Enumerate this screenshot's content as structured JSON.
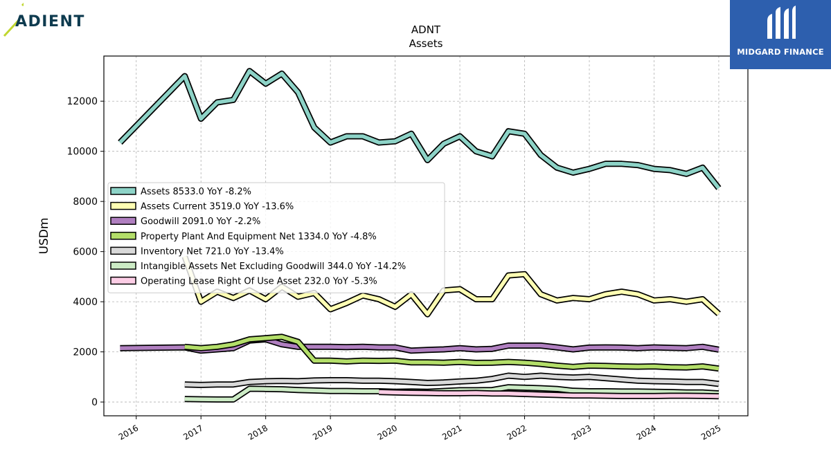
{
  "branding": {
    "left_logo_text": "ADIENT",
    "right_logo_text": "MIDGARD FINANCE",
    "left_logo_icon": "adient-slash-logo-icon",
    "right_logo_icon": "midgard-m-logo-icon"
  },
  "chart_data": {
    "type": "line",
    "title": "ADNT",
    "subtitle": "Assets",
    "ylabel": "USDm",
    "xlabel": "",
    "xlim": [
      2015.5,
      2025.45
    ],
    "ylim": [
      -550,
      13800
    ],
    "yticks": [
      0,
      2000,
      4000,
      6000,
      8000,
      10000,
      12000
    ],
    "xticks": [
      2016,
      2017,
      2018,
      2019,
      2020,
      2021,
      2022,
      2023,
      2024,
      2025
    ],
    "grid": true,
    "legend_position": "center-left",
    "series": [
      {
        "name": "Assets  8533.0 YoY -8.2%",
        "color": "#8dd3c7",
        "x": [
          2015.75,
          2016.75,
          2017.0,
          2017.25,
          2017.5,
          2017.75,
          2018.0,
          2018.25,
          2018.5,
          2018.75,
          2019.0,
          2019.25,
          2019.5,
          2019.75,
          2020.0,
          2020.25,
          2020.5,
          2020.75,
          2021.0,
          2021.25,
          2021.5,
          2021.75,
          2022.0,
          2022.25,
          2022.5,
          2022.75,
          2023.0,
          2023.25,
          2023.5,
          2023.75,
          2024.0,
          2024.25,
          2024.5,
          2024.75,
          2025.0
        ],
        "y": [
          10350,
          13000,
          11300,
          11950,
          12050,
          13200,
          12700,
          13100,
          12350,
          10950,
          10350,
          10600,
          10600,
          10350,
          10400,
          10700,
          9650,
          10300,
          10600,
          10000,
          9800,
          10800,
          10700,
          9850,
          9350,
          9150,
          9300,
          9500,
          9500,
          9450,
          9300,
          9250,
          9100,
          9350,
          8533
        ]
      },
      {
        "name": "Assets Current  3519.0 YoY -13.6%",
        "color": "#ffffb3",
        "x": [
          2016.75,
          2017.0,
          2017.25,
          2017.5,
          2017.75,
          2018.0,
          2018.25,
          2018.5,
          2018.75,
          2019.0,
          2019.25,
          2019.5,
          2019.75,
          2020.0,
          2020.25,
          2020.5,
          2020.75,
          2021.0,
          2021.25,
          2021.5,
          2021.75,
          2022.0,
          2022.25,
          2022.5,
          2022.75,
          2023.0,
          2023.25,
          2023.5,
          2023.75,
          2024.0,
          2024.25,
          2024.5,
          2024.75,
          2025.0
        ],
        "y": [
          5800,
          4000,
          4400,
          4150,
          4450,
          4100,
          4600,
          4200,
          4350,
          3700,
          3950,
          4250,
          4100,
          3800,
          4300,
          3500,
          4450,
          4500,
          4100,
          4100,
          5050,
          5100,
          4300,
          4050,
          4150,
          4100,
          4300,
          4400,
          4300,
          4050,
          4100,
          4000,
          4100,
          3519
        ]
      },
      {
        "name": "Goodwill  2091.0 YoY -2.2%",
        "color": "#bebada",
        "stroke_color": "#b07fc0",
        "x": [
          2015.75,
          2016.75,
          2017.0,
          2017.25,
          2017.5,
          2017.75,
          2018.0,
          2018.25,
          2018.5,
          2018.75,
          2019.0,
          2019.25,
          2019.5,
          2019.75,
          2020.0,
          2020.25,
          2020.5,
          2020.75,
          2021.0,
          2021.25,
          2021.5,
          2021.75,
          2022.0,
          2022.25,
          2022.5,
          2022.75,
          2023.0,
          2023.25,
          2023.5,
          2023.75,
          2024.0,
          2024.25,
          2024.5,
          2024.75,
          2025.0
        ],
        "y": [
          2150,
          2180,
          2050,
          2100,
          2150,
          2450,
          2500,
          2300,
          2200,
          2200,
          2200,
          2190,
          2200,
          2180,
          2180,
          2050,
          2080,
          2100,
          2150,
          2100,
          2120,
          2250,
          2250,
          2250,
          2180,
          2100,
          2170,
          2180,
          2170,
          2150,
          2180,
          2160,
          2150,
          2200,
          2091
        ]
      },
      {
        "name": "Property Plant And Equipment Net  1334.0 YoY -4.8%",
        "color": "#b3de69",
        "x": [
          2016.75,
          2017.0,
          2017.25,
          2017.5,
          2017.75,
          2018.0,
          2018.25,
          2018.5,
          2018.75,
          2019.0,
          2019.25,
          2019.5,
          2019.75,
          2020.0,
          2020.25,
          2020.5,
          2020.75,
          2021.0,
          2021.25,
          2021.5,
          2021.75,
          2022.0,
          2022.25,
          2022.5,
          2022.75,
          2023.0,
          2023.25,
          2023.5,
          2023.75,
          2024.0,
          2024.25,
          2024.5,
          2024.75,
          2025.0
        ],
        "y": [
          2200,
          2150,
          2200,
          2300,
          2500,
          2550,
          2600,
          2400,
          1650,
          1650,
          1620,
          1650,
          1640,
          1650,
          1580,
          1580,
          1570,
          1600,
          1560,
          1570,
          1600,
          1570,
          1520,
          1450,
          1400,
          1450,
          1440,
          1420,
          1410,
          1420,
          1390,
          1380,
          1420,
          1334
        ]
      },
      {
        "name": "Inventory Net  721.0 YoY -13.4%",
        "color": "#d9d9d9",
        "x": [
          2016.75,
          2017.0,
          2017.25,
          2017.5,
          2017.75,
          2018.0,
          2018.25,
          2018.5,
          2018.75,
          2019.0,
          2019.25,
          2019.5,
          2019.75,
          2020.0,
          2020.25,
          2020.5,
          2020.75,
          2021.0,
          2021.25,
          2021.5,
          2021.75,
          2022.0,
          2022.25,
          2022.5,
          2022.75,
          2023.0,
          2023.25,
          2023.5,
          2023.75,
          2024.0,
          2024.25,
          2024.5,
          2024.75,
          2025.0
        ],
        "y": [
          700,
          680,
          700,
          700,
          800,
          830,
          840,
          830,
          860,
          870,
          870,
          850,
          850,
          830,
          800,
          760,
          780,
          820,
          850,
          920,
          1050,
          1000,
          1050,
          1000,
          980,
          1000,
          950,
          900,
          850,
          830,
          820,
          800,
          800,
          721
        ]
      },
      {
        "name": "Intangible Assets Net Excluding Goodwill  344.0 YoY -14.2%",
        "color": "#ccebc5",
        "x": [
          2016.75,
          2017.0,
          2017.25,
          2017.5,
          2017.75,
          2018.0,
          2018.25,
          2018.5,
          2018.75,
          2019.0,
          2019.25,
          2019.5,
          2019.75,
          2020.0,
          2020.25,
          2020.5,
          2020.75,
          2021.0,
          2021.25,
          2021.5,
          2021.75,
          2022.0,
          2022.25,
          2022.5,
          2022.75,
          2023.0,
          2023.25,
          2023.5,
          2023.75,
          2024.0,
          2024.25,
          2024.5,
          2024.75,
          2025.0
        ],
        "y": [
          120,
          110,
          100,
          100,
          530,
          520,
          510,
          480,
          460,
          440,
          440,
          430,
          430,
          410,
          420,
          410,
          440,
          470,
          470,
          480,
          590,
          570,
          550,
          520,
          450,
          430,
          430,
          420,
          420,
          410,
          400,
          380,
          380,
          344
        ]
      },
      {
        "name": "Operating Lease Right Of Use Asset  232.0 YoY -5.3%",
        "color": "#fccde5",
        "x": [
          2019.75,
          2020.0,
          2020.25,
          2020.5,
          2020.75,
          2021.0,
          2021.25,
          2021.5,
          2021.75,
          2022.0,
          2022.25,
          2022.5,
          2022.75,
          2023.0,
          2023.25,
          2023.5,
          2023.75,
          2024.0,
          2024.25,
          2024.5,
          2024.75,
          2025.0
        ],
        "y": [
          400,
          380,
          370,
          360,
          350,
          350,
          360,
          340,
          340,
          320,
          300,
          280,
          260,
          260,
          250,
          240,
          240,
          240,
          250,
          250,
          245,
          232
        ]
      }
    ]
  }
}
